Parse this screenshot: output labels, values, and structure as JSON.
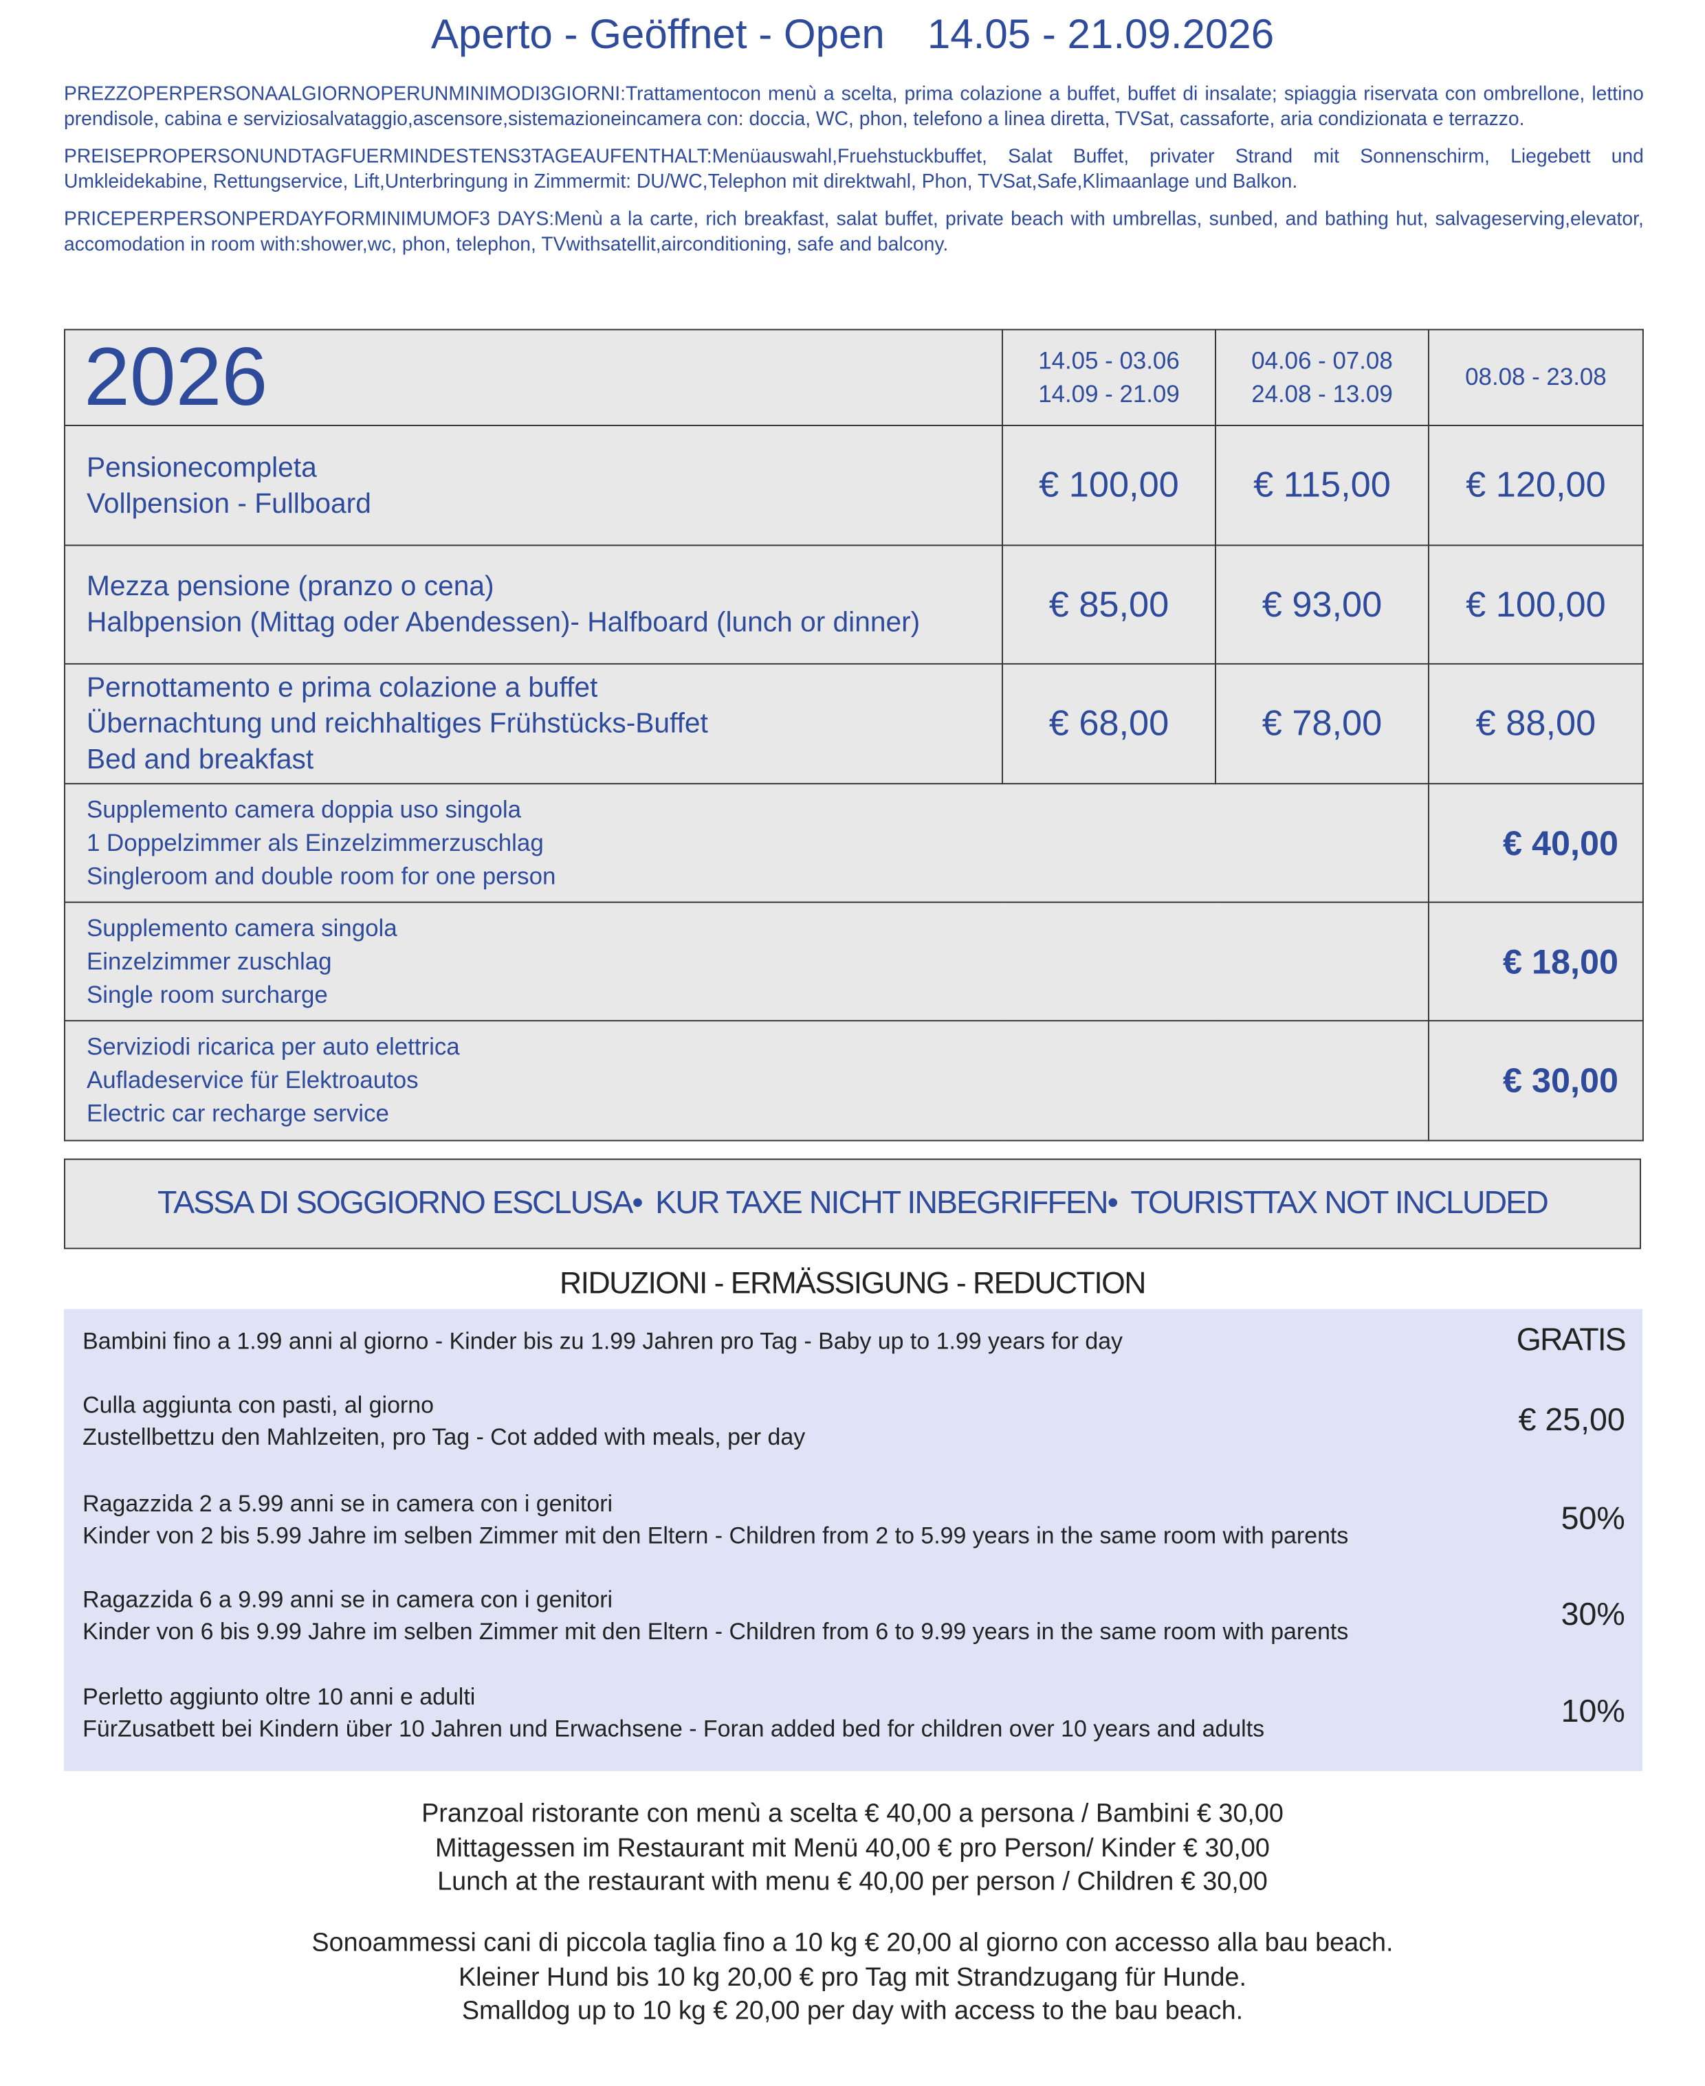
{
  "header": {
    "title": "Aperto - Geöffnet - Open",
    "dates": "14.05 - 21.09.2026"
  },
  "intro": [
    "PREZZOPERPERSONAALGIORNOPERUNMINIMODI3GIORNI:Trattamentocon menù a scelta, prima colazione a buffet, buffet di insalate; spiaggia riservata con ombrellone, lettino prendisole, cabina e serviziosalvataggio,ascensore,sistemazioneincamera con: doccia, WC, phon, telefono a linea diretta, TVSat, cassaforte, aria condizionata e terrazzo.",
    "PREISEPROPERSONUNDTAGFUERMINDESTENS3TAGEAUFENTHALT:Menüauswahl,Fruehstuckbuffet, Salat Buffet, privater Strand mit Sonnenschirm, Liegebett und Umkleidekabine, Rettungservice, Lift,Unterbringung in Zimmermit: DU/WC,Telephon mit direktwahl, Phon, TVSat,Safe,Klimaanlage und Balkon.",
    "PRICEPERPERSONPERDAYFORMINIMUMOF3 DAYS:Menù a la carte, rich breakfast, salat buffet, private beach with umbrellas, sunbed, and bathing hut, salvageserving,elevator, accomodation in room with:shower,wc, phon, telephon, TVwithsatellit,airconditioning, safe and balcony."
  ],
  "table": {
    "year": "2026",
    "periods": [
      [
        "14.05 - 03.06",
        "14.09 - 21.09"
      ],
      [
        "04.06 - 07.08",
        "24.08 - 13.09"
      ],
      [
        "08.08 - 23.08"
      ]
    ],
    "rows": [
      {
        "lines": [
          "Pensionecompleta",
          "Vollpension - Fullboard"
        ],
        "prices": [
          "€ 100,00",
          "€ 115,00",
          "€ 120,00"
        ]
      },
      {
        "lines": [
          "Mezza pensione (pranzo o cena)",
          "Halbpension (Mittag oder Abendessen)- Halfboard (lunch or dinner)"
        ],
        "prices": [
          "€ 85,00",
          "€ 93,00",
          "€ 100,00"
        ]
      },
      {
        "lines": [
          "Pernottamento e prima colazione a buffet",
          "Übernachtung und reichhaltiges Frühstücks-Buffet",
          "Bed and breakfast"
        ],
        "prices": [
          "€ 68,00",
          "€ 78,00",
          "€ 88,00"
        ]
      }
    ],
    "supplements": [
      {
        "lines": [
          "Supplemento camera doppia uso singola",
          "1 Doppelzimmer als Einzelzimmerzuschlag",
          "Singleroom and double room for one person"
        ],
        "price": "€ 40,00"
      },
      {
        "lines": [
          "Supplemento camera singola",
          "Einzelzimmer zuschlag",
          "Single room surcharge"
        ],
        "price": "€ 18,00"
      },
      {
        "lines": [
          "Serviziodi ricarica per auto elettrica",
          "Aufladeservice für Elektroautos",
          "Electric car recharge service"
        ],
        "price": "€ 30,00"
      }
    ]
  },
  "tax": [
    "TASSA DI SOGGIORNO ESCLUSA•",
    "KUR TAXE NICHT INBEGRIFFEN•",
    "TOURISTTAX NOT INCLUDED"
  ],
  "reductions": {
    "title": "RIDUZIONI - ERMÄSSIGUNG - REDUCTION",
    "items": [
      {
        "lines": [
          "Bambini fino a 1.99 anni al giorno - Kinder bis zu 1.99 Jahren pro Tag - Baby up to 1.99 years for day"
        ],
        "value": "GRATIS"
      },
      {
        "lines": [
          "Culla aggiunta con pasti, al giorno",
          "Zustellbettzu den Mahlzeiten, pro Tag - Cot added with meals, per day"
        ],
        "value": "€ 25,00"
      },
      {
        "lines": [
          "Ragazzida 2 a 5.99 anni se in camera con i genitori",
          "Kinder von 2 bis 5.99 Jahre im selben Zimmer mit den Eltern - Children from 2 to 5.99 years in the same room with parents"
        ],
        "value": "50%"
      },
      {
        "lines": [
          "Ragazzida 6 a 9.99 anni se in camera con i genitori",
          "Kinder von 6 bis 9.99 Jahre im selben Zimmer mit den Eltern - Children from 6 to 9.99 years in the same room with parents"
        ],
        "value": "30%"
      },
      {
        "lines": [
          "Perletto aggiunto oltre 10 anni e adulti",
          "FürZusatbett bei Kindern über 10 Jahren und Erwachsene - Foran added bed for children over 10 years and adults"
        ],
        "value": "10%"
      }
    ]
  },
  "footer": {
    "lunch": [
      "Pranzoal ristorante con menù a scelta € 40,00 a persona / Bambini € 30,00",
      "Mittagessen im Restaurant mit Menü 40,00 € pro Person/ Kinder € 30,00",
      "Lunch at the restaurant with menu € 40,00 per person / Children € 30,00"
    ],
    "dogs": [
      "Sonoammessi cani di piccola taglia fino a 10 kg € 20,00 al giorno con accesso alla bau beach.",
      "Kleiner Hund bis 10 kg 20,00 € pro Tag mit Strandzugang für Hunde.",
      "Smalldog up to 10 kg € 20,00 per day with access to the bau beach."
    ]
  }
}
